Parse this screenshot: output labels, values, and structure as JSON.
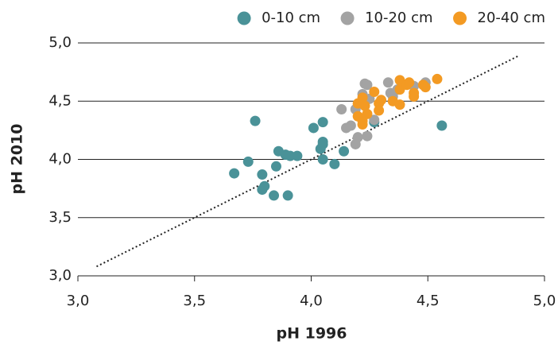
{
  "chart_data": {
    "type": "scatter",
    "xlabel": "pH 1996",
    "ylabel": "pH 2010",
    "xlim": [
      3,
      5
    ],
    "ylim": [
      3,
      5
    ],
    "xticks": [
      {
        "value": 3,
        "label": "3,0"
      },
      {
        "value": 3.5,
        "label": "3,5"
      },
      {
        "value": 4,
        "label": "4,0"
      },
      {
        "value": 4.5,
        "label": "4,5"
      },
      {
        "value": 5,
        "label": "5,0"
      }
    ],
    "yticks": [
      {
        "value": 3,
        "label": "3,0"
      },
      {
        "value": 3.5,
        "label": "3,5"
      },
      {
        "value": 4,
        "label": "4,0"
      },
      {
        "value": 4.5,
        "label": "4,5"
      },
      {
        "value": 5,
        "label": "5,0"
      }
    ],
    "grid": true,
    "legend": "top-right",
    "reference_line": {
      "x": [
        3.08,
        4.89
      ],
      "y": [
        3.08,
        4.89
      ]
    },
    "series": [
      {
        "name": "0-10 cm",
        "color": "#4a9298",
        "x": [
          3.67,
          3.73,
          3.76,
          3.79,
          3.79,
          3.8,
          3.84,
          3.85,
          3.86,
          3.89,
          3.91,
          3.9,
          3.94,
          4.01,
          4.04,
          4.05,
          4.05,
          4.05,
          4.05,
          4.1,
          4.14,
          4.27,
          4.56
        ],
        "values": [
          3.88,
          3.98,
          4.33,
          3.87,
          3.74,
          3.77,
          3.69,
          3.94,
          4.07,
          4.04,
          4.03,
          3.69,
          4.03,
          4.27,
          4.09,
          4.13,
          4.15,
          4.32,
          4.0,
          3.96,
          4.07,
          4.32,
          4.29
        ]
      },
      {
        "name": "10-20 cm",
        "color": "#a3a3a3",
        "x": [
          4.13,
          4.15,
          4.17,
          4.19,
          4.19,
          4.2,
          4.22,
          4.23,
          4.24,
          4.24,
          4.25,
          4.27,
          4.33,
          4.34,
          4.35,
          4.37,
          4.44,
          4.49
        ],
        "values": [
          4.43,
          4.27,
          4.29,
          4.43,
          4.13,
          4.19,
          4.56,
          4.65,
          4.64,
          4.2,
          4.52,
          4.34,
          4.66,
          4.57,
          4.54,
          4.6,
          4.63,
          4.66
        ]
      },
      {
        "name": "20-40 cm",
        "color": "#f39a23",
        "x": [
          4.2,
          4.2,
          4.22,
          4.22,
          4.22,
          4.23,
          4.24,
          4.27,
          4.29,
          4.29,
          4.3,
          4.35,
          4.38,
          4.38,
          4.38,
          4.41,
          4.42,
          4.44,
          4.44,
          4.48,
          4.49,
          4.54
        ],
        "values": [
          4.48,
          4.37,
          4.33,
          4.3,
          4.53,
          4.46,
          4.39,
          4.58,
          4.48,
          4.42,
          4.51,
          4.5,
          4.6,
          4.68,
          4.47,
          4.64,
          4.66,
          4.57,
          4.54,
          4.64,
          4.62,
          4.69
        ]
      }
    ]
  }
}
